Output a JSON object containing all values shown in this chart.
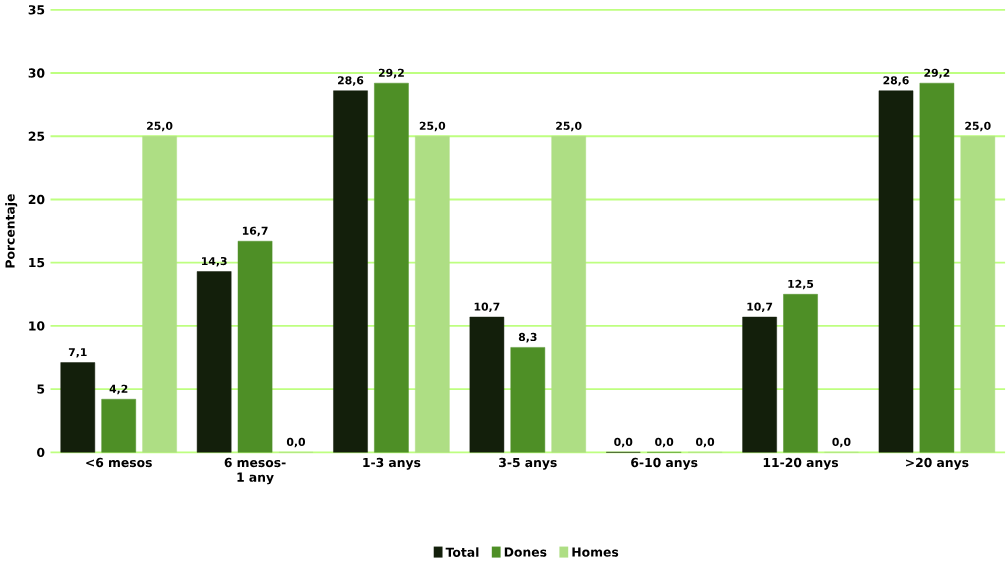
{
  "chart_data": {
    "type": "bar",
    "ylabel": "Porcentaje",
    "categories": [
      "<6 mesos",
      "6 mesos-1 any",
      "1-3 anys",
      "3-5 anys",
      "6-10 anys",
      "11-20 anys",
      ">20 anys"
    ],
    "series": [
      {
        "name": "Total",
        "color": "#131f0b",
        "values": [
          7.1,
          14.3,
          28.6,
          10.7,
          0.0,
          10.7,
          28.6
        ],
        "value_labels": [
          "7,1",
          "14,3",
          "28,6",
          "10,7",
          "0,0",
          "10,7",
          "28,6"
        ]
      },
      {
        "name": "Dones",
        "color": "#4e8f26",
        "values": [
          4.2,
          16.7,
          29.2,
          8.3,
          0.0,
          12.5,
          29.2
        ],
        "value_labels": [
          "4,2",
          "16,7",
          "29,2",
          "8,3",
          "0,0",
          "12,5",
          "29,2"
        ]
      },
      {
        "name": "Homes",
        "color": "#aede84",
        "values": [
          25.0,
          0.0,
          25.0,
          25.0,
          0.0,
          0.0,
          25.0
        ],
        "value_labels": [
          "25,0",
          "0,0",
          "25,0",
          "25,0",
          "0,0",
          "0,0",
          "25,0"
        ]
      }
    ],
    "ylim": [
      0,
      35
    ],
    "yticks": [
      0,
      5,
      10,
      15,
      20,
      25,
      30,
      35
    ],
    "grid": "y",
    "legend": "bottom"
  }
}
